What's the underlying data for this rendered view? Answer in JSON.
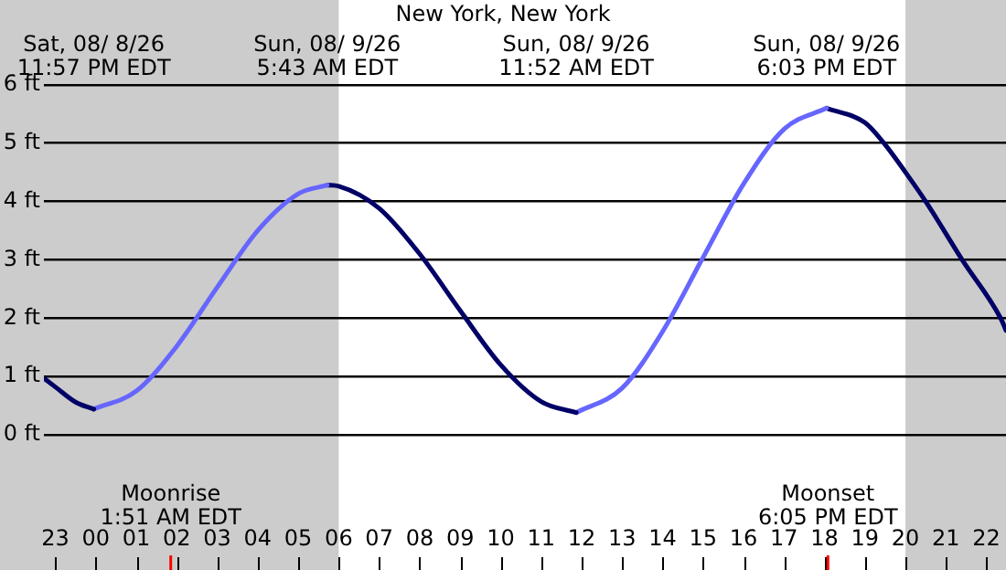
{
  "chart_data": {
    "type": "line",
    "title": "New York, New York",
    "xlim": [
      "--08-08T22:43",
      "--08-09T22:29"
    ],
    "ylim": [
      0,
      6
    ],
    "xticks": [
      {
        "value": "--08-08T23:00",
        "label": "23"
      },
      {
        "value": "--08-09T00:00",
        "label": "00"
      },
      {
        "value": "--08-09T01:00",
        "label": "01"
      },
      {
        "value": "--08-09T02:00",
        "label": "02"
      },
      {
        "value": "--08-09T03:00",
        "label": "03"
      },
      {
        "value": "--08-09T04:00",
        "label": "04"
      },
      {
        "value": "--08-09T05:00",
        "label": "05"
      },
      {
        "value": "--08-09T06:00",
        "label": "06"
      },
      {
        "value": "--08-09T07:00",
        "label": "07"
      },
      {
        "value": "--08-09T08:00",
        "label": "08"
      },
      {
        "value": "--08-09T09:00",
        "label": "09"
      },
      {
        "value": "--08-09T10:00",
        "label": "10"
      },
      {
        "value": "--08-09T11:00",
        "label": "11"
      },
      {
        "value": "--08-09T12:00",
        "label": "12"
      },
      {
        "value": "--08-09T13:00",
        "label": "13"
      },
      {
        "value": "--08-09T14:00",
        "label": "14"
      },
      {
        "value": "--08-09T15:00",
        "label": "15"
      },
      {
        "value": "--08-09T16:00",
        "label": "16"
      },
      {
        "value": "--08-09T17:00",
        "label": "17"
      },
      {
        "value": "--08-09T18:00",
        "label": "18"
      },
      {
        "value": "--08-09T19:00",
        "label": "19"
      },
      {
        "value": "--08-09T20:00",
        "label": "20"
      },
      {
        "value": "--08-09T21:00",
        "label": "21"
      },
      {
        "value": "--08-09T22:00",
        "label": "22"
      }
    ],
    "yticks": [
      {
        "value": 0,
        "label": "0 ft"
      },
      {
        "value": 1,
        "label": "1 ft"
      },
      {
        "value": 2,
        "label": "2 ft"
      },
      {
        "value": 3,
        "label": "3 ft"
      },
      {
        "value": 4,
        "label": "4 ft"
      },
      {
        "value": 5,
        "label": "5 ft"
      },
      {
        "value": 6,
        "label": "6 ft"
      }
    ],
    "grid": "y",
    "marker": "none",
    "line_style": "solid",
    "series": [
      {
        "color": "#000066",
        "x": [
          "--08-08T22:43",
          "--08-08T23:00",
          "--08-08T23:30",
          "--08-08T23:57"
        ],
        "values": [
          0.97,
          0.82,
          0.56,
          0.44
        ]
      },
      {
        "color": "#6666ff",
        "x": [
          "--08-08T23:57",
          "--08-09T01:00",
          "--08-09T02:00",
          "--08-09T03:00",
          "--08-09T04:00",
          "--08-09T05:00",
          "--08-09T05:43"
        ],
        "values": [
          0.44,
          0.75,
          1.52,
          2.53,
          3.5,
          4.13,
          4.28
        ]
      },
      {
        "color": "#000066",
        "x": [
          "--08-09T05:43",
          "--08-09T06:00",
          "--08-09T07:00",
          "--08-09T08:00",
          "--08-09T09:00",
          "--08-09T10:00",
          "--08-09T11:00",
          "--08-09T11:52"
        ],
        "values": [
          4.28,
          4.26,
          3.88,
          3.1,
          2.13,
          1.2,
          0.57,
          0.38
        ]
      },
      {
        "color": "#6666ff",
        "x": [
          "--08-09T11:52",
          "--08-09T13:00",
          "--08-09T14:00",
          "--08-09T15:00",
          "--08-09T16:00",
          "--08-09T17:00",
          "--08-09T18:03"
        ],
        "values": [
          0.38,
          0.8,
          1.77,
          3.04,
          4.3,
          5.24,
          5.6
        ]
      },
      {
        "color": "#000066",
        "x": [
          "--08-09T18:03",
          "--08-09T19:00",
          "--08-09T19:28",
          "--08-09T20:00",
          "--08-09T20:30",
          "--08-09T21:24",
          "--08-09T22:21",
          "--08-09T22:29"
        ],
        "values": [
          5.6,
          5.35,
          5.0,
          4.5,
          4.0,
          3.0,
          2.0,
          1.79
        ]
      }
    ],
    "bands": [
      {
        "axis": "x",
        "from": "--08-08T22:43",
        "to": "--08-09T06:00",
        "color": "#cccccc"
      },
      {
        "axis": "x",
        "from": "--08-09T20:00",
        "to": "--08-09T22:29",
        "color": "#cccccc"
      }
    ],
    "ref_lines": [
      {
        "axis": "x",
        "value": "--08-09T01:51",
        "label": "Moonrise\n1:51 AM EDT",
        "color": "#ff0000"
      },
      {
        "axis": "x",
        "value": "--08-09T18:05",
        "label": "Moonset\n6:05 PM EDT",
        "color": "#ff0000"
      }
    ],
    "annotations": [
      "Sat, 08/ 8/26\n11:57 PM EDT",
      "Sun, 08/ 9/26\n5:43 AM EDT",
      "Sun, 08/ 9/26\n11:52 AM EDT",
      "Sun, 08/ 9/26\n6:03 PM EDT"
    ]
  }
}
